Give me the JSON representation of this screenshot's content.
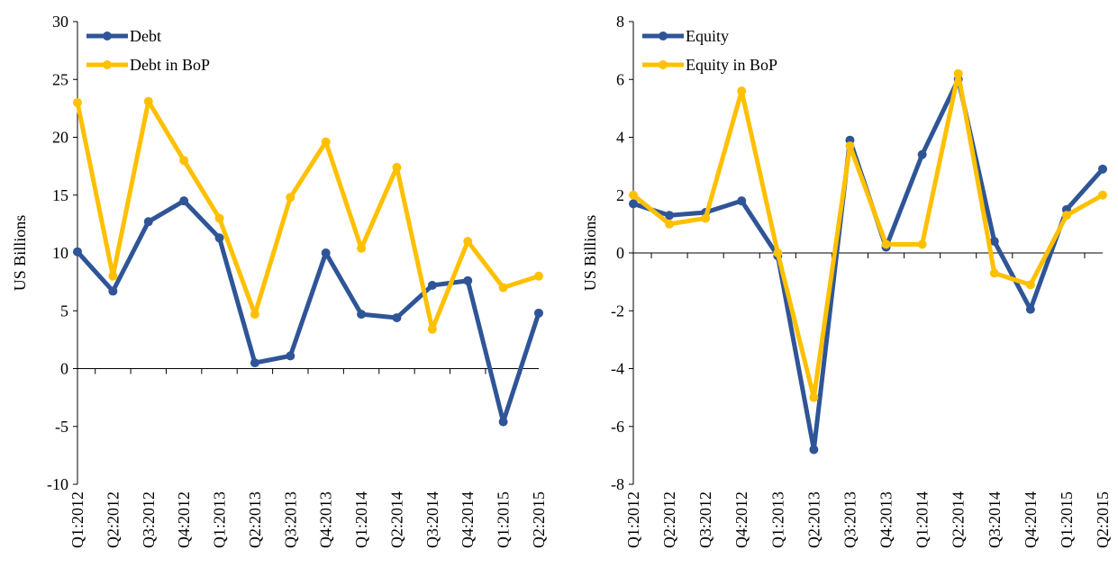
{
  "chart_data": [
    {
      "type": "line",
      "ylabel": "US Billions",
      "categories": [
        "Q1:2012",
        "Q2:2012",
        "Q3:2012",
        "Q4:2012",
        "Q1:2013",
        "Q2:2013",
        "Q3:2013",
        "Q4:2013",
        "Q1:2014",
        "Q2:2014",
        "Q3:2014",
        "Q4:2014",
        "Q1:2015",
        "Q2:2015"
      ],
      "series": [
        {
          "name": "Debt",
          "color": "#2f5597",
          "values": [
            10.1,
            6.7,
            12.7,
            14.5,
            11.3,
            0.5,
            1.1,
            10.0,
            4.7,
            4.4,
            7.2,
            7.6,
            -4.6,
            4.8
          ]
        },
        {
          "name": "Debt in BoP",
          "color": "#ffc000",
          "values": [
            23.0,
            8.0,
            23.1,
            18.0,
            13.0,
            4.7,
            14.8,
            19.6,
            10.4,
            17.4,
            3.4,
            11.0,
            7.0,
            8.0
          ]
        }
      ],
      "ylim": [
        -10,
        30
      ],
      "yticks": [
        -10,
        -5,
        0,
        5,
        10,
        15,
        20,
        25,
        30
      ],
      "legend": "upper-left"
    },
    {
      "type": "line",
      "ylabel": "US Billions",
      "categories": [
        "Q1:2012",
        "Q2:2012",
        "Q3:2012",
        "Q4:2012",
        "Q1:2013",
        "Q2:2013",
        "Q3:2013",
        "Q4:2013",
        "Q1:2014",
        "Q2:2014",
        "Q3:2014",
        "Q4:2014",
        "Q1:2015",
        "Q2:2015"
      ],
      "series": [
        {
          "name": "Equity",
          "color": "#2f5597",
          "values": [
            1.7,
            1.3,
            1.4,
            1.8,
            -0.1,
            -6.8,
            3.9,
            0.2,
            3.4,
            6.0,
            0.4,
            -1.95,
            1.5,
            2.9
          ]
        },
        {
          "name": "Equity in BoP",
          "color": "#ffc000",
          "values": [
            2.0,
            1.0,
            1.2,
            5.6,
            0.0,
            -5.0,
            3.7,
            0.3,
            0.3,
            6.2,
            -0.7,
            -1.1,
            1.3,
            2.0
          ]
        }
      ],
      "ylim": [
        -8,
        8
      ],
      "yticks": [
        -8,
        -6,
        -4,
        -2,
        0,
        2,
        4,
        6,
        8
      ],
      "legend": "upper-left"
    }
  ]
}
